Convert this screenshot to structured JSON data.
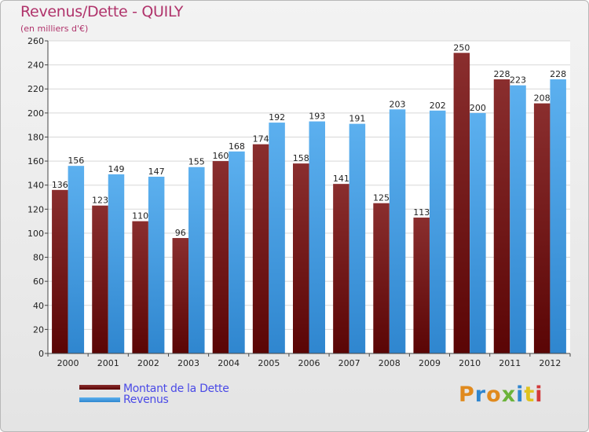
{
  "chart_data": {
    "type": "bar",
    "title": "Revenus/Dette - QUILY",
    "subtitle": "(en milliers d'€)",
    "categories": [
      "2000",
      "2001",
      "2002",
      "2003",
      "2004",
      "2005",
      "2006",
      "2007",
      "2008",
      "2009",
      "2010",
      "2011",
      "2012"
    ],
    "series": [
      {
        "name": "Montant de la Dette",
        "color": "#7a1a1a",
        "values": [
          136,
          123,
          110,
          96,
          160,
          174,
          158,
          141,
          125,
          113,
          250,
          228,
          208
        ]
      },
      {
        "name": "Revenus",
        "color": "#4fa3e3",
        "values": [
          156,
          149,
          147,
          155,
          168,
          192,
          193,
          191,
          203,
          202,
          200,
          223,
          228
        ]
      }
    ],
    "ylim": [
      0,
      260
    ],
    "yticks": [
      0,
      20,
      40,
      60,
      80,
      100,
      120,
      140,
      160,
      180,
      200,
      220,
      240,
      260
    ],
    "grid": true,
    "legend_position": "bottom-left"
  },
  "logo": {
    "text": "Proxiti"
  }
}
